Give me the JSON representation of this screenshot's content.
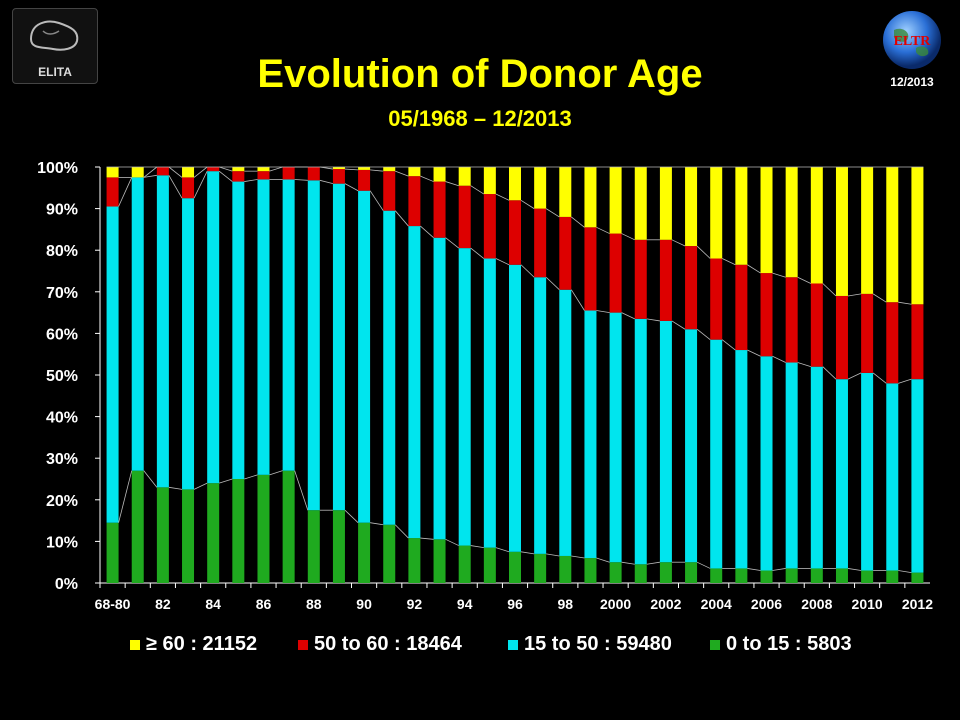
{
  "header": {
    "title": "Evolution of Donor Age",
    "subtitle": "05/1968 – 12/2013",
    "date_badge": "12/2013",
    "logo_left_text": "ELITA",
    "logo_right_text": "ELTR"
  },
  "colors": {
    "ge60": "#ffff00",
    "50to60": "#dd0000",
    "15to50": "#00e5ee",
    "0to15": "#1faa1f",
    "background": "#000000",
    "text": "#ffffff"
  },
  "chart_data": {
    "type": "bar",
    "stacked": true,
    "percent": true,
    "ylim": [
      0,
      100
    ],
    "yticks": [
      "0%",
      "10%",
      "20%",
      "30%",
      "40%",
      "50%",
      "60%",
      "70%",
      "80%",
      "90%",
      "100%"
    ],
    "xtick_labels": [
      "68-80",
      "",
      "82",
      "",
      "84",
      "",
      "86",
      "",
      "88",
      "",
      "90",
      "",
      "92",
      "",
      "94",
      "",
      "96",
      "",
      "98",
      "",
      "2000",
      "",
      "2002",
      "",
      "2004",
      "",
      "2006",
      "",
      "2008",
      "",
      "2010",
      "",
      "2012"
    ],
    "categories": [
      "68-80",
      "81",
      "82",
      "83",
      "84",
      "85",
      "86",
      "87",
      "88",
      "89",
      "90",
      "91",
      "92",
      "93",
      "94",
      "95",
      "96",
      "97",
      "98",
      "99",
      "2000",
      "2001",
      "2002",
      "2003",
      "2004",
      "2005",
      "2006",
      "2007",
      "2008",
      "2009",
      "2010",
      "2011",
      "2012"
    ],
    "legend_position": "bottom",
    "grid": false,
    "series": [
      {
        "name": "0 to 15 : 5803",
        "color_key": "0to15",
        "values": [
          14.5,
          27.0,
          23.0,
          22.5,
          24.0,
          25.0,
          26.0,
          27.0,
          17.5,
          17.5,
          14.5,
          14.0,
          10.8,
          10.5,
          9.0,
          8.5,
          7.5,
          7.0,
          6.5,
          6.0,
          5.0,
          4.5,
          5.0,
          5.0,
          3.5,
          3.5,
          3.0,
          3.5,
          3.5,
          3.5,
          3.0,
          3.0,
          2.5
        ]
      },
      {
        "name": "15 to 50 : 59480",
        "color_key": "15to50",
        "values": [
          76.0,
          70.5,
          75.0,
          70.0,
          75.0,
          71.5,
          71.0,
          70.0,
          79.3,
          78.5,
          79.8,
          75.5,
          75.0,
          72.5,
          71.5,
          69.5,
          69.0,
          66.5,
          64.0,
          59.5,
          60.0,
          59.0,
          58.0,
          56.0,
          55.0,
          52.5,
          51.5,
          49.5,
          48.5,
          45.5,
          47.5,
          45.0,
          46.5
        ]
      },
      {
        "name": "50 to 60 : 18464",
        "color_key": "50to60",
        "values": [
          7.0,
          0.0,
          2.0,
          5.0,
          1.0,
          2.5,
          2.0,
          3.0,
          3.2,
          3.5,
          5.0,
          9.5,
          12.0,
          13.5,
          15.0,
          15.5,
          15.5,
          16.5,
          17.5,
          20.0,
          19.0,
          19.0,
          19.5,
          20.0,
          19.5,
          20.5,
          20.0,
          20.5,
          20.0,
          20.0,
          19.0,
          19.5,
          18.0
        ]
      },
      {
        "name": "≥ 60 : 21152",
        "color_key": "ge60",
        "values": [
          2.5,
          2.5,
          0.0,
          2.5,
          0.0,
          1.0,
          1.0,
          0.0,
          0.0,
          0.5,
          0.7,
          1.0,
          2.2,
          3.5,
          4.5,
          6.5,
          8.0,
          10.0,
          12.0,
          14.5,
          16.0,
          17.5,
          17.5,
          19.0,
          22.0,
          23.5,
          25.5,
          26.5,
          28.0,
          31.0,
          30.5,
          32.5,
          33.0
        ]
      }
    ]
  },
  "legend": [
    {
      "label": "≥ 60 : 21152",
      "color_key": "ge60"
    },
    {
      "label": "50 to 60 : 18464",
      "color_key": "50to60"
    },
    {
      "label": "15 to 50 : 59480",
      "color_key": "15to50"
    },
    {
      "label": "0 to 15 : 5803",
      "color_key": "0to15"
    }
  ]
}
